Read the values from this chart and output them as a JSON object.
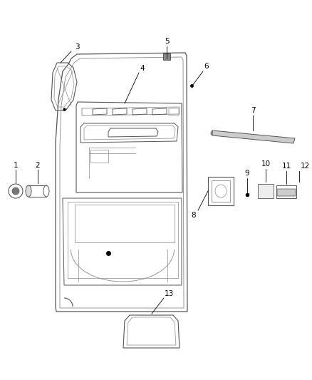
{
  "background_color": "#ffffff",
  "fig_width": 4.38,
  "fig_height": 5.33,
  "dpi": 100,
  "line_color": "#555555",
  "light_line": "#888888",
  "lighter_line": "#aaaaaa"
}
